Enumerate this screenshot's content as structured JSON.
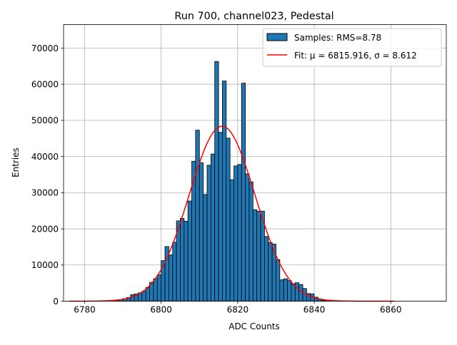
{
  "chart_data": {
    "type": "bar",
    "title": "Run 700, channel023, Pedestal",
    "xlabel": "ADC Counts",
    "ylabel": "Entries",
    "xlim": [
      6774.5,
      6874.5
    ],
    "ylim": [
      0,
      76500
    ],
    "grid": true,
    "legend_position": "top-right",
    "x_ticks": [
      6780,
      6800,
      6820,
      6840,
      6860
    ],
    "y_ticks": [
      0,
      10000,
      20000,
      30000,
      40000,
      50000,
      60000,
      70000
    ],
    "x_tick_labels": [
      "6780",
      "6800",
      "6820",
      "6840",
      "6860"
    ],
    "y_tick_labels": [
      "0",
      "10000",
      "20000",
      "30000",
      "40000",
      "50000",
      "60000",
      "70000"
    ],
    "histogram": {
      "name": "Samples: RMS=8.78",
      "color": "#1f77b4",
      "edge_color": "#000000",
      "bin_width": 1,
      "bin_starts": [
        6788,
        6789,
        6790,
        6791,
        6792,
        6793,
        6794,
        6795,
        6796,
        6797,
        6798,
        6799,
        6800,
        6801,
        6802,
        6803,
        6804,
        6805,
        6806,
        6807,
        6808,
        6809,
        6810,
        6811,
        6812,
        6813,
        6814,
        6815,
        6816,
        6817,
        6818,
        6819,
        6820,
        6821,
        6822,
        6823,
        6824,
        6825,
        6826,
        6827,
        6828,
        6829,
        6830,
        6831,
        6832,
        6833,
        6834,
        6835,
        6836,
        6837,
        6838,
        6839,
        6840,
        6841,
        6842,
        6843
      ],
      "counts": [
        200,
        400,
        700,
        1000,
        1800,
        2000,
        2300,
        2700,
        3800,
        5200,
        6200,
        7300,
        11200,
        15100,
        12800,
        16300,
        22200,
        22900,
        22100,
        27700,
        38700,
        47300,
        38300,
        29500,
        37600,
        40700,
        66300,
        46700,
        60900,
        45100,
        33600,
        37400,
        37800,
        60300,
        35200,
        33000,
        25300,
        24900,
        24900,
        17900,
        16200,
        15800,
        11500,
        5900,
        6200,
        5700,
        4800,
        5100,
        4600,
        3500,
        2100,
        2000,
        1100,
        600,
        200,
        50
      ]
    },
    "fit": {
      "name": "Fit: μ = 6815.916, σ = 8.612",
      "color": "#ff0000",
      "mu": 6815.916,
      "sigma": 8.612,
      "amplitude": 48400,
      "x_range": [
        6776,
        6861
      ]
    }
  }
}
